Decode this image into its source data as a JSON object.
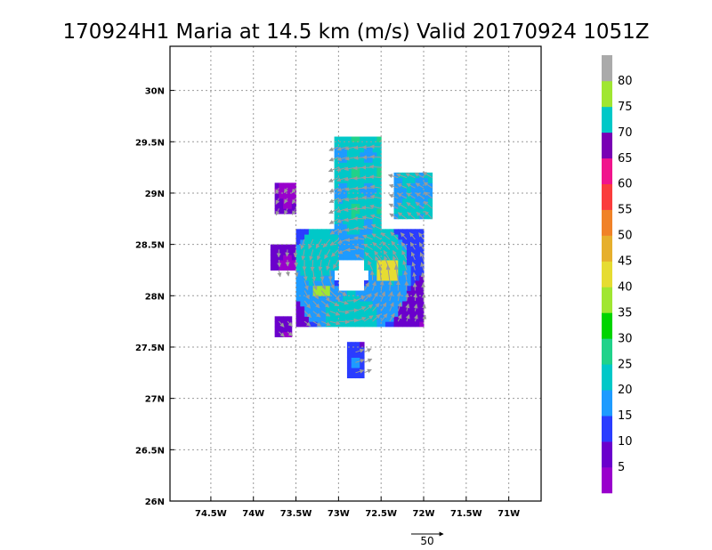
{
  "chart_data": {
    "type": "heatmap",
    "title": "170924H1 Maria at 14.5 km (m/s) Valid 20170924 1051Z",
    "x_ticks": [
      {
        "value": -74.5,
        "label": "74.5W"
      },
      {
        "value": -74.0,
        "label": "74W"
      },
      {
        "value": -73.5,
        "label": "73.5W"
      },
      {
        "value": -73.0,
        "label": "73W"
      },
      {
        "value": -72.5,
        "label": "72.5W"
      },
      {
        "value": -72.0,
        "label": "72W"
      },
      {
        "value": -71.5,
        "label": "71.5W"
      },
      {
        "value": -71.0,
        "label": "71W"
      }
    ],
    "y_ticks": [
      {
        "value": 26.0,
        "label": "26N"
      },
      {
        "value": 26.5,
        "label": "26.5N"
      },
      {
        "value": 27.0,
        "label": "27N"
      },
      {
        "value": 27.5,
        "label": "27.5N"
      },
      {
        "value": 28.0,
        "label": "28N"
      },
      {
        "value": 28.5,
        "label": "28.5N"
      },
      {
        "value": 29.0,
        "label": "29N"
      },
      {
        "value": 29.5,
        "label": "29.5N"
      },
      {
        "value": 30.0,
        "label": "30N"
      }
    ],
    "xlim": [
      -74.98,
      -70.62
    ],
    "ylim": [
      26.0,
      30.43
    ],
    "grid": true,
    "colorbar": {
      "levels": [
        "5",
        "10",
        "15",
        "20",
        "25",
        "30",
        "35",
        "40",
        "45",
        "50",
        "55",
        "60",
        "65",
        "70",
        "75",
        "80"
      ],
      "colors": [
        "#9900cc",
        "#6a00cc",
        "#2a3cff",
        "#1e9bff",
        "#00c8c8",
        "#20d28a",
        "#00d400",
        "#a0e632",
        "#e6dc32",
        "#e6af2d",
        "#f08228",
        "#fa3c3c",
        "#f0148c",
        "#7800b4",
        "#00c8c8",
        "#a0e632",
        "#aaaaaa"
      ]
    },
    "reference_vector": {
      "label": "50",
      "speed": 50
    },
    "wind_field": [
      {
        "region": "north-arm",
        "lon_range": [
          -73.05,
          -72.5
        ],
        "lat_range": [
          28.6,
          29.55
        ],
        "speed": 22
      },
      {
        "region": "northeast-patch",
        "lon_range": [
          -72.35,
          -71.9
        ],
        "lat_range": [
          28.75,
          29.2
        ],
        "speed": 20
      },
      {
        "region": "west-purple-top",
        "lon_range": [
          -73.75,
          -73.5
        ],
        "lat_range": [
          28.8,
          29.12
        ],
        "speed": 5
      },
      {
        "region": "west-purple-mid",
        "lon_range": [
          -73.78,
          -73.45
        ],
        "lat_range": [
          28.25,
          28.48
        ],
        "speed": 6
      },
      {
        "region": "southwest-purple",
        "lon_range": [
          -73.75,
          -73.55
        ],
        "lat_range": [
          27.6,
          27.78
        ],
        "speed": 6
      },
      {
        "region": "inner-ring",
        "lon_range": [
          -73.5,
          -72.0
        ],
        "lat_range": [
          27.7,
          28.65
        ],
        "speed": 18
      },
      {
        "region": "eastern-maximum",
        "lon_range": [
          -72.55,
          -72.3
        ],
        "lat_range": [
          28.15,
          28.35
        ],
        "speed": 41
      },
      {
        "region": "western-maximum",
        "lon_range": [
          -73.3,
          -73.1
        ],
        "lat_range": [
          28.02,
          28.12
        ],
        "speed": 35
      },
      {
        "region": "south-arm",
        "lon_range": [
          -72.9,
          -72.7
        ],
        "lat_range": [
          27.18,
          27.55
        ],
        "speed": 12
      }
    ]
  }
}
